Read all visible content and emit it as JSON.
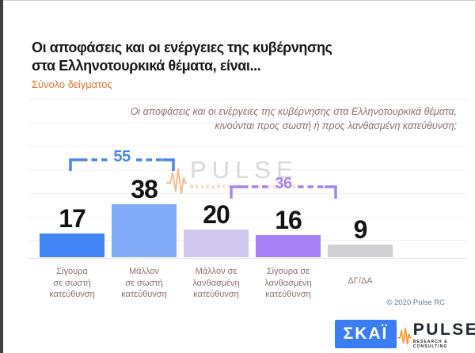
{
  "page": {
    "title_line1": "Οι αποφάσεις και οι ενέργειες της κυβέρνησης",
    "title_line2": "στα Ελληνοτουρκικά θέματα, είναι...",
    "subtitle": "Σύνολο δείγματος",
    "question_line1": "Οι αποφάσεις και οι ενέργειες της κυβέρνησης στα Ελληνοτουρκικά θέματα,",
    "question_line2": "κινούνται προς σωστή ή προς λανθασμένη κατεύθυνση;",
    "copyright": "© 2020 Pulse RC"
  },
  "chart_data": {
    "type": "bar",
    "title": "Οι αποφάσεις και οι ενέργειες της κυβέρνησης στα Ελληνοτουρκικά θέματα, είναι...",
    "subtitle": "Σύνολο δείγματος",
    "categories": [
      "Σίγουρα\nσε σωστή\nκατεύθυνση",
      "Μάλλον\nσε σωστή\nκατεύθυνση",
      "Μάλλον σε\nλανθασμένη\nκατεύθυνση",
      "Σίγουρα σε\nλανθασμένη\nκατεύθυνση",
      "ΔΓ/ΔΑ"
    ],
    "values": [
      17,
      38,
      20,
      16,
      9
    ],
    "bar_colors": [
      "#4285f4",
      "#82acf8",
      "#d2c7ee",
      "#a981f6",
      "#d1d0d2"
    ],
    "value_label_color": "#121212",
    "grid": "faint horizontal gridlines, no y-axis labels",
    "legend": "none",
    "annotations": [
      {
        "label": "55",
        "meaning": "sum of first two bars (σωστή κατεύθυνση)",
        "color": "#4a86e8"
      },
      {
        "label": "36",
        "meaning": "sum of third and fourth bars (λανθασμένη κατεύθυνση)",
        "color": "#a685f2"
      }
    ]
  },
  "watermark": {
    "brand": "PULSE",
    "tagline": "RESEARCH & CONSULTING"
  },
  "footer": {
    "skai_logo": "ΣΚΑΪ",
    "pulse_brand": "PULSE",
    "pulse_tagline": "RESEARCH & CONSULTING"
  }
}
